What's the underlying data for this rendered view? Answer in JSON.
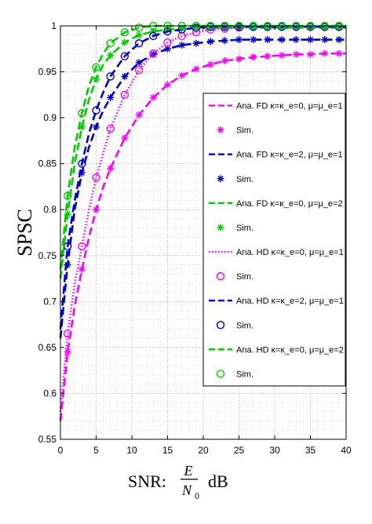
{
  "chart_data": {
    "type": "line",
    "ylabel": "SPSC",
    "xlabel": "SNR: E/N0 dB",
    "xlabel_parts": {
      "prefix": "SNR:",
      "num": "E",
      "den": "N",
      "den_sub": "0",
      "suffix": "dB"
    },
    "xlim": [
      0,
      40
    ],
    "ylim": [
      0.55,
      1
    ],
    "xticks": [
      "0",
      "5",
      "10",
      "15",
      "20",
      "25",
      "30",
      "35",
      "40"
    ],
    "yticks": [
      "0.55",
      "0.6",
      "0.65",
      "0.7",
      "0.75",
      "0.8",
      "0.85",
      "0.9",
      "0.95",
      "1"
    ],
    "grid": true,
    "legend_position": "right",
    "legend": [
      {
        "label": "Ana. FD κ=κ_e=0, μ=μ_e=1",
        "symbol": "dash",
        "color": "#ff00ff"
      },
      {
        "label": "Sim.",
        "symbol": "star",
        "color": "#ff00ff"
      },
      {
        "label": "Ana. FD κ=κ_e=2, μ=μ_e=1",
        "symbol": "dash",
        "color": "#0000cc"
      },
      {
        "label": "Sim.",
        "symbol": "star",
        "color": "#0000cc"
      },
      {
        "label": "Ana. FD κ=κ_e=0, μ=μ_e=2",
        "symbol": "dash",
        "color": "#00cc00"
      },
      {
        "label": "Sim.",
        "symbol": "star",
        "color": "#00cc00"
      },
      {
        "label": "Ana. HD κ=κ_e=0, μ=μ_e=1",
        "symbol": "dot",
        "color": "#ff00ff"
      },
      {
        "label": "Sim.",
        "symbol": "circle",
        "color": "#ff00ff"
      },
      {
        "label": "Ana. HD κ=κ_e=2, μ=μ_e=1",
        "symbol": "dash",
        "color": "#0000cc"
      },
      {
        "label": "Sim.",
        "symbol": "circle",
        "color": "#0000cc"
      },
      {
        "label": "Ana. HD κ=κ_e=0, μ=μ_e=2",
        "symbol": "dash",
        "color": "#00cc00"
      },
      {
        "label": "Sim.",
        "symbol": "circle",
        "color": "#00cc00"
      }
    ],
    "series": [
      {
        "kind": "FD",
        "color": "#ff00ff",
        "line": "dash",
        "marker": "star",
        "x": [
          0,
          1,
          2,
          3,
          4,
          5,
          6,
          7,
          9,
          11,
          13,
          15,
          17,
          19,
          21,
          23,
          25,
          27,
          29,
          31,
          33,
          35,
          37,
          39,
          40
        ],
        "y": [
          0.57,
          0.645,
          0.695,
          0.735,
          0.77,
          0.8,
          0.825,
          0.845,
          0.878,
          0.903,
          0.922,
          0.936,
          0.946,
          0.953,
          0.958,
          0.962,
          0.964,
          0.966,
          0.967,
          0.968,
          0.969,
          0.969,
          0.97,
          0.97,
          0.97
        ],
        "marker_x": [
          1,
          3,
          5,
          7,
          9,
          11,
          13,
          15,
          17,
          19,
          21,
          23,
          25,
          27,
          29,
          31,
          33,
          35,
          37,
          39
        ],
        "marker_y": [
          0.645,
          0.735,
          0.8,
          0.845,
          0.878,
          0.903,
          0.922,
          0.936,
          0.946,
          0.953,
          0.958,
          0.962,
          0.964,
          0.966,
          0.967,
          0.968,
          0.969,
          0.969,
          0.97,
          0.97
        ]
      },
      {
        "kind": "FD",
        "color": "#0000cc",
        "line": "dash",
        "marker": "star",
        "x": [
          0,
          1,
          2,
          3,
          4,
          5,
          6,
          7,
          9,
          11,
          13,
          15,
          17,
          19,
          21,
          23,
          25,
          27,
          29,
          31,
          33,
          35,
          37,
          39,
          40
        ],
        "y": [
          0.66,
          0.74,
          0.8,
          0.84,
          0.868,
          0.89,
          0.908,
          0.922,
          0.945,
          0.96,
          0.969,
          0.975,
          0.979,
          0.981,
          0.983,
          0.984,
          0.985,
          0.985,
          0.985,
          0.985,
          0.985,
          0.985,
          0.985,
          0.985,
          0.985
        ],
        "marker_x": [
          1,
          3,
          5,
          7,
          9,
          11,
          13,
          15,
          17,
          19,
          21,
          23,
          25,
          27,
          29,
          31,
          33,
          35,
          37,
          39
        ],
        "marker_y": [
          0.74,
          0.84,
          0.89,
          0.922,
          0.945,
          0.96,
          0.969,
          0.975,
          0.979,
          0.981,
          0.983,
          0.984,
          0.985,
          0.985,
          0.985,
          0.985,
          0.985,
          0.985,
          0.985,
          0.985
        ]
      },
      {
        "kind": "FD",
        "color": "#00cc00",
        "line": "dash",
        "marker": "star",
        "x": [
          0,
          1,
          2,
          3,
          4,
          5,
          6,
          7,
          9,
          11,
          13,
          15,
          17,
          19,
          21,
          23,
          25,
          27,
          29,
          31,
          33,
          35,
          37,
          39,
          40
        ],
        "y": [
          0.725,
          0.795,
          0.85,
          0.89,
          0.92,
          0.942,
          0.958,
          0.968,
          0.982,
          0.99,
          0.994,
          0.996,
          0.997,
          0.998,
          0.998,
          0.998,
          0.998,
          0.998,
          0.998,
          0.998,
          0.998,
          0.998,
          0.998,
          0.998,
          0.998
        ],
        "marker_x": [
          1,
          3,
          5,
          7,
          9,
          11,
          13,
          15,
          17,
          19,
          21,
          23,
          25,
          27,
          29,
          31,
          33,
          35,
          37,
          39
        ],
        "marker_y": [
          0.795,
          0.89,
          0.942,
          0.968,
          0.982,
          0.99,
          0.994,
          0.996,
          0.997,
          0.998,
          0.998,
          0.998,
          0.998,
          0.998,
          0.998,
          0.998,
          0.998,
          0.998,
          0.998,
          0.998
        ]
      },
      {
        "kind": "HD",
        "color": "#ff00ff",
        "line": "dot",
        "marker": "circle",
        "x": [
          0,
          1,
          2,
          3,
          4,
          5,
          6,
          7,
          9,
          11,
          13,
          15,
          17,
          19,
          21,
          23,
          25,
          27,
          29,
          31,
          33,
          35,
          37,
          39,
          40
        ],
        "y": [
          0.58,
          0.665,
          0.72,
          0.76,
          0.8,
          0.835,
          0.862,
          0.888,
          0.925,
          0.952,
          0.97,
          0.982,
          0.989,
          0.993,
          0.996,
          0.997,
          0.998,
          0.999,
          0.999,
          0.999,
          0.999,
          0.999,
          0.999,
          0.999,
          0.999
        ],
        "marker_x": [
          1,
          3,
          5,
          7,
          9,
          11,
          13,
          15,
          17,
          19,
          21,
          23,
          25,
          27,
          29,
          31,
          33,
          35,
          37,
          39
        ],
        "marker_y": [
          0.665,
          0.76,
          0.835,
          0.888,
          0.925,
          0.952,
          0.97,
          0.982,
          0.989,
          0.993,
          0.996,
          0.997,
          0.998,
          0.999,
          0.999,
          0.999,
          0.999,
          0.999,
          0.999,
          0.999
        ]
      },
      {
        "kind": "HD",
        "color": "#0000cc",
        "line": "dash",
        "marker": "circle",
        "x": [
          0,
          1,
          2,
          3,
          4,
          5,
          6,
          7,
          9,
          11,
          13,
          15,
          17,
          19,
          21,
          23,
          25,
          27,
          29,
          31,
          33,
          35,
          37,
          39,
          40
        ],
        "y": [
          0.67,
          0.76,
          0.81,
          0.85,
          0.883,
          0.908,
          0.928,
          0.945,
          0.967,
          0.981,
          0.989,
          0.994,
          0.996,
          0.998,
          0.999,
          0.999,
          0.999,
          0.999,
          0.999,
          0.999,
          0.999,
          0.999,
          0.999,
          0.999,
          0.999
        ],
        "marker_x": [
          1,
          3,
          5,
          7,
          9,
          11,
          13,
          15,
          17,
          19,
          21,
          23,
          25,
          27,
          29,
          31,
          33,
          35,
          37,
          39
        ],
        "marker_y": [
          0.76,
          0.85,
          0.908,
          0.945,
          0.967,
          0.981,
          0.989,
          0.994,
          0.996,
          0.998,
          0.999,
          0.999,
          0.999,
          0.999,
          0.999,
          0.999,
          0.999,
          0.999,
          0.999,
          0.999
        ]
      },
      {
        "kind": "HD",
        "color": "#00cc00",
        "line": "dash",
        "marker": "circle",
        "x": [
          0,
          1,
          2,
          3,
          4,
          5,
          6,
          7,
          9,
          11,
          13,
          15,
          17,
          19,
          21,
          23,
          25,
          27,
          29,
          31,
          33,
          35,
          37,
          39,
          40
        ],
        "y": [
          0.735,
          0.815,
          0.868,
          0.905,
          0.935,
          0.955,
          0.97,
          0.981,
          0.993,
          0.998,
          1.0,
          1.0,
          1.0,
          1.0,
          1.0,
          1.0,
          1.0,
          1.0,
          1.0,
          1.0,
          1.0,
          1.0,
          1.0,
          1.0,
          1.0
        ],
        "marker_x": [
          1,
          3,
          5,
          7,
          9,
          11,
          13,
          15,
          17,
          19,
          21,
          23,
          25,
          27,
          29,
          31,
          33,
          35,
          37,
          39
        ],
        "marker_y": [
          0.815,
          0.905,
          0.955,
          0.981,
          0.993,
          0.998,
          1.0,
          1.0,
          1.0,
          1.0,
          1.0,
          1.0,
          1.0,
          1.0,
          1.0,
          1.0,
          1.0,
          1.0,
          1.0,
          1.0
        ]
      }
    ]
  }
}
